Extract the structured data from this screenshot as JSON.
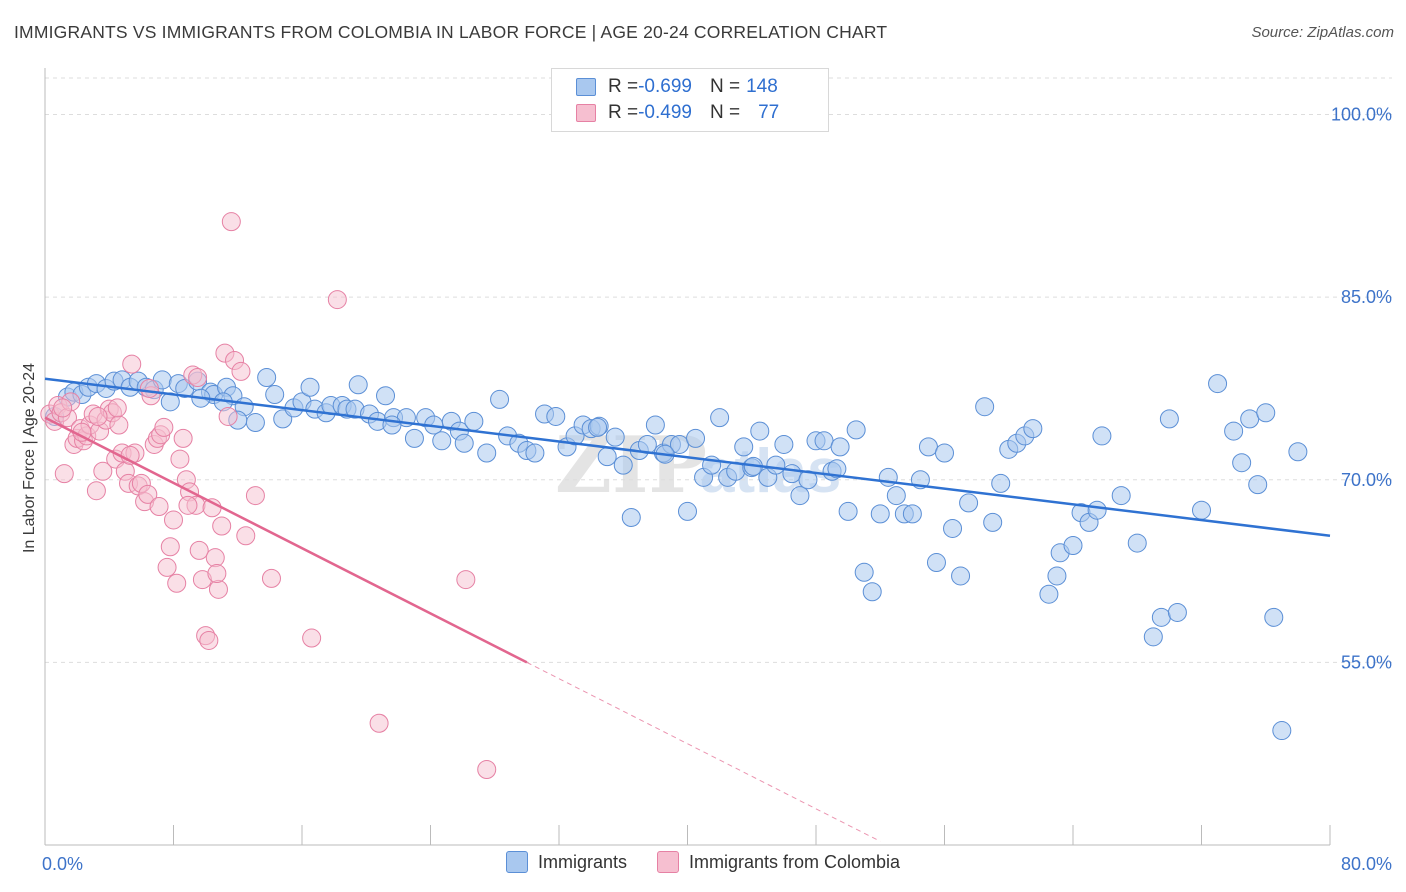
{
  "title": "IMMIGRANTS VS IMMIGRANTS FROM COLOMBIA IN LABOR FORCE | AGE 20-24 CORRELATION CHART",
  "source": "Source: ZipAtlas.com",
  "legend": {
    "rows": [
      {
        "r_label": "R = ",
        "r_value": "-0.699",
        "n_label": "N = ",
        "n_value": "148"
      },
      {
        "r_label": "R = ",
        "r_value": "-0.499",
        "n_label": "N = ",
        "n_value": "77"
      }
    ]
  },
  "bottom_legend": [
    "Immigrants",
    "Immigrants from Colombia"
  ],
  "colors": {
    "blue_fill": "#a9c8ef",
    "blue_stroke": "#5b8fd6",
    "blue_line": "#2f72d2",
    "pink_fill": "#f6bfd0",
    "pink_stroke": "#e681a4",
    "pink_line": "#e2668f",
    "tick_label": "#3d73c9",
    "grid": "#dddddd"
  },
  "chart_data": {
    "type": "scatter",
    "title": "IMMIGRANTS VS IMMIGRANTS FROM COLOMBIA IN LABOR FORCE | AGE 20-24 CORRELATION CHART",
    "xlabel": "",
    "ylabel": "In Labor Force | Age 20-24",
    "xlim": [
      0,
      80
    ],
    "ylim": [
      40,
      103
    ],
    "x_tick_labels": [
      "0.0%",
      "80.0%"
    ],
    "y_ticks": [
      55,
      70,
      85,
      100
    ],
    "y_tick_labels": [
      "55.0%",
      "70.0%",
      "85.0%",
      "100.0%"
    ],
    "grid": true,
    "legend_position": "top-center",
    "watermark": "ZIPatlas",
    "series": [
      {
        "name": "Immigrants",
        "r": -0.699,
        "n": 148,
        "trend": {
          "x": [
            0,
            80
          ],
          "y": [
            78.3,
            65.4
          ]
        },
        "points": [
          [
            0.6,
            75.2
          ],
          [
            1.4,
            76.8
          ],
          [
            1.8,
            77.2
          ],
          [
            2.3,
            77.0
          ],
          [
            2.7,
            77.6
          ],
          [
            3.2,
            77.9
          ],
          [
            3.8,
            77.5
          ],
          [
            4.3,
            78.1
          ],
          [
            4.8,
            78.2
          ],
          [
            5.3,
            77.6
          ],
          [
            5.8,
            78.1
          ],
          [
            6.3,
            77.6
          ],
          [
            6.8,
            77.4
          ],
          [
            7.3,
            78.2
          ],
          [
            7.8,
            76.4
          ],
          [
            8.3,
            77.9
          ],
          [
            8.7,
            77.5
          ],
          [
            9.5,
            78.1
          ],
          [
            10.3,
            77.2
          ],
          [
            10.5,
            77.0
          ],
          [
            11.3,
            77.6
          ],
          [
            11.7,
            76.9
          ],
          [
            12.4,
            76.0
          ],
          [
            13.1,
            74.7
          ],
          [
            13.8,
            78.4
          ],
          [
            14.3,
            77.0
          ],
          [
            14.8,
            75.0
          ],
          [
            15.5,
            75.9
          ],
          [
            16.0,
            76.4
          ],
          [
            16.5,
            77.6
          ],
          [
            16.8,
            75.8
          ],
          [
            17.5,
            75.5
          ],
          [
            17.8,
            76.1
          ],
          [
            18.5,
            76.1
          ],
          [
            18.8,
            75.8
          ],
          [
            19.3,
            75.8
          ],
          [
            19.5,
            77.8
          ],
          [
            20.2,
            75.4
          ],
          [
            20.7,
            74.8
          ],
          [
            21.2,
            76.9
          ],
          [
            21.7,
            75.1
          ],
          [
            22.5,
            75.1
          ],
          [
            23.0,
            73.4
          ],
          [
            23.7,
            75.1
          ],
          [
            24.2,
            74.5
          ],
          [
            24.7,
            73.2
          ],
          [
            25.3,
            74.8
          ],
          [
            25.8,
            74.0
          ],
          [
            26.7,
            74.8
          ],
          [
            27.5,
            72.2
          ],
          [
            28.3,
            76.6
          ],
          [
            28.8,
            73.6
          ],
          [
            29.5,
            73.0
          ],
          [
            30.0,
            72.4
          ],
          [
            30.5,
            72.2
          ],
          [
            31.1,
            75.4
          ],
          [
            31.8,
            75.2
          ],
          [
            32.5,
            72.7
          ],
          [
            33.0,
            73.6
          ],
          [
            33.5,
            74.5
          ],
          [
            34.0,
            74.2
          ],
          [
            34.5,
            74.4
          ],
          [
            35.0,
            71.9
          ],
          [
            35.5,
            73.5
          ],
          [
            36.0,
            71.2
          ],
          [
            36.5,
            66.9
          ],
          [
            37.0,
            72.4
          ],
          [
            37.5,
            72.9
          ],
          [
            38.0,
            74.5
          ],
          [
            38.5,
            72.2
          ],
          [
            39.0,
            72.9
          ],
          [
            39.5,
            72.9
          ],
          [
            40.0,
            67.4
          ],
          [
            40.5,
            73.4
          ],
          [
            41.0,
            70.2
          ],
          [
            41.5,
            71.2
          ],
          [
            42.0,
            75.1
          ],
          [
            42.5,
            70.2
          ],
          [
            43.0,
            70.7
          ],
          [
            43.5,
            72.7
          ],
          [
            44.0,
            71.0
          ],
          [
            44.5,
            74.0
          ],
          [
            45.0,
            70.2
          ],
          [
            45.5,
            71.2
          ],
          [
            46.0,
            72.9
          ],
          [
            46.5,
            70.5
          ],
          [
            47.0,
            68.7
          ],
          [
            47.5,
            70.0
          ],
          [
            48.0,
            73.2
          ],
          [
            48.5,
            73.2
          ],
          [
            49.0,
            70.7
          ],
          [
            49.5,
            72.7
          ],
          [
            50.0,
            67.4
          ],
          [
            50.5,
            74.1
          ],
          [
            51.0,
            62.4
          ],
          [
            51.5,
            60.8
          ],
          [
            52.0,
            67.2
          ],
          [
            52.5,
            70.2
          ],
          [
            53.0,
            68.7
          ],
          [
            53.5,
            67.2
          ],
          [
            54.0,
            67.2
          ],
          [
            54.5,
            70.0
          ],
          [
            55.0,
            72.7
          ],
          [
            55.5,
            63.2
          ],
          [
            56.0,
            72.2
          ],
          [
            56.5,
            66.0
          ],
          [
            57.0,
            62.1
          ],
          [
            57.5,
            68.1
          ],
          [
            58.5,
            76.0
          ],
          [
            59.0,
            66.5
          ],
          [
            59.5,
            69.7
          ],
          [
            60.0,
            72.5
          ],
          [
            60.5,
            73.0
          ],
          [
            61.0,
            73.6
          ],
          [
            61.5,
            74.2
          ],
          [
            62.5,
            60.6
          ],
          [
            63.0,
            62.1
          ],
          [
            63.2,
            64.0
          ],
          [
            64.0,
            64.6
          ],
          [
            64.5,
            67.3
          ],
          [
            65.0,
            66.5
          ],
          [
            65.5,
            67.5
          ],
          [
            65.8,
            73.6
          ],
          [
            67.0,
            68.7
          ],
          [
            68.0,
            64.8
          ],
          [
            69.0,
            57.1
          ],
          [
            69.5,
            58.7
          ],
          [
            70.0,
            75.0
          ],
          [
            70.5,
            59.1
          ],
          [
            72.0,
            67.5
          ],
          [
            73.0,
            77.9
          ],
          [
            74.0,
            74.0
          ],
          [
            74.5,
            71.4
          ],
          [
            75.0,
            75.0
          ],
          [
            75.5,
            69.6
          ],
          [
            76.0,
            75.5
          ],
          [
            76.5,
            58.7
          ],
          [
            77.0,
            49.4
          ],
          [
            78.0,
            72.3
          ],
          [
            49.3,
            70.9
          ],
          [
            44.1,
            71.1
          ],
          [
            38.6,
            72.1
          ],
          [
            34.4,
            74.3
          ],
          [
            26.1,
            73.0
          ],
          [
            21.6,
            74.5
          ],
          [
            12.0,
            74.9
          ],
          [
            11.1,
            76.4
          ],
          [
            9.7,
            76.7
          ]
        ]
      },
      {
        "name": "Immigrants from Colombia",
        "r": -0.499,
        "n": 77,
        "trend": {
          "x": [
            0,
            30
          ],
          "y": [
            75.1,
            55.0
          ]
        },
        "trend_dashed": {
          "x": [
            30,
            52
          ],
          "y": [
            55.0,
            40.3
          ]
        },
        "points": [
          [
            0.3,
            75.4
          ],
          [
            0.6,
            74.8
          ],
          [
            0.8,
            76.1
          ],
          [
            1.0,
            75.5
          ],
          [
            1.2,
            70.5
          ],
          [
            1.4,
            75.1
          ],
          [
            1.6,
            76.4
          ],
          [
            1.8,
            72.9
          ],
          [
            2.0,
            73.4
          ],
          [
            2.2,
            74.2
          ],
          [
            2.4,
            73.2
          ],
          [
            2.6,
            73.6
          ],
          [
            2.8,
            74.5
          ],
          [
            3.0,
            75.4
          ],
          [
            3.2,
            69.1
          ],
          [
            3.4,
            74.0
          ],
          [
            3.6,
            70.7
          ],
          [
            3.8,
            74.9
          ],
          [
            4.0,
            75.8
          ],
          [
            4.2,
            75.5
          ],
          [
            4.4,
            71.7
          ],
          [
            4.6,
            74.5
          ],
          [
            4.8,
            72.2
          ],
          [
            5.0,
            70.7
          ],
          [
            5.2,
            69.7
          ],
          [
            5.4,
            79.5
          ],
          [
            5.6,
            72.2
          ],
          [
            5.8,
            69.5
          ],
          [
            6.0,
            69.7
          ],
          [
            6.2,
            68.2
          ],
          [
            6.4,
            68.8
          ],
          [
            6.6,
            76.9
          ],
          [
            6.8,
            72.9
          ],
          [
            7.0,
            73.4
          ],
          [
            7.2,
            73.7
          ],
          [
            7.4,
            74.3
          ],
          [
            7.6,
            62.8
          ],
          [
            7.8,
            64.5
          ],
          [
            8.0,
            66.7
          ],
          [
            8.2,
            61.5
          ],
          [
            8.4,
            71.7
          ],
          [
            8.6,
            73.4
          ],
          [
            8.8,
            70.0
          ],
          [
            9.0,
            69.0
          ],
          [
            9.2,
            78.6
          ],
          [
            9.4,
            67.9
          ],
          [
            9.6,
            64.2
          ],
          [
            9.8,
            61.8
          ],
          [
            10.0,
            57.2
          ],
          [
            10.2,
            56.8
          ],
          [
            10.4,
            67.7
          ],
          [
            10.6,
            63.6
          ],
          [
            10.8,
            61.0
          ],
          [
            11.0,
            66.2
          ],
          [
            11.2,
            80.4
          ],
          [
            11.4,
            75.2
          ],
          [
            11.6,
            91.2
          ],
          [
            11.8,
            79.8
          ],
          [
            12.2,
            78.9
          ],
          [
            12.5,
            65.4
          ],
          [
            13.1,
            68.7
          ],
          [
            14.1,
            61.9
          ],
          [
            16.6,
            57.0
          ],
          [
            18.2,
            84.8
          ],
          [
            20.8,
            50.0
          ],
          [
            26.2,
            61.8
          ],
          [
            27.5,
            46.2
          ],
          [
            1.1,
            75.9
          ],
          [
            2.3,
            73.9
          ],
          [
            3.3,
            75.2
          ],
          [
            4.5,
            75.9
          ],
          [
            5.3,
            72.0
          ],
          [
            6.5,
            77.5
          ],
          [
            7.1,
            67.8
          ],
          [
            8.9,
            67.9
          ],
          [
            9.5,
            78.4
          ],
          [
            10.7,
            62.3
          ]
        ]
      }
    ]
  }
}
